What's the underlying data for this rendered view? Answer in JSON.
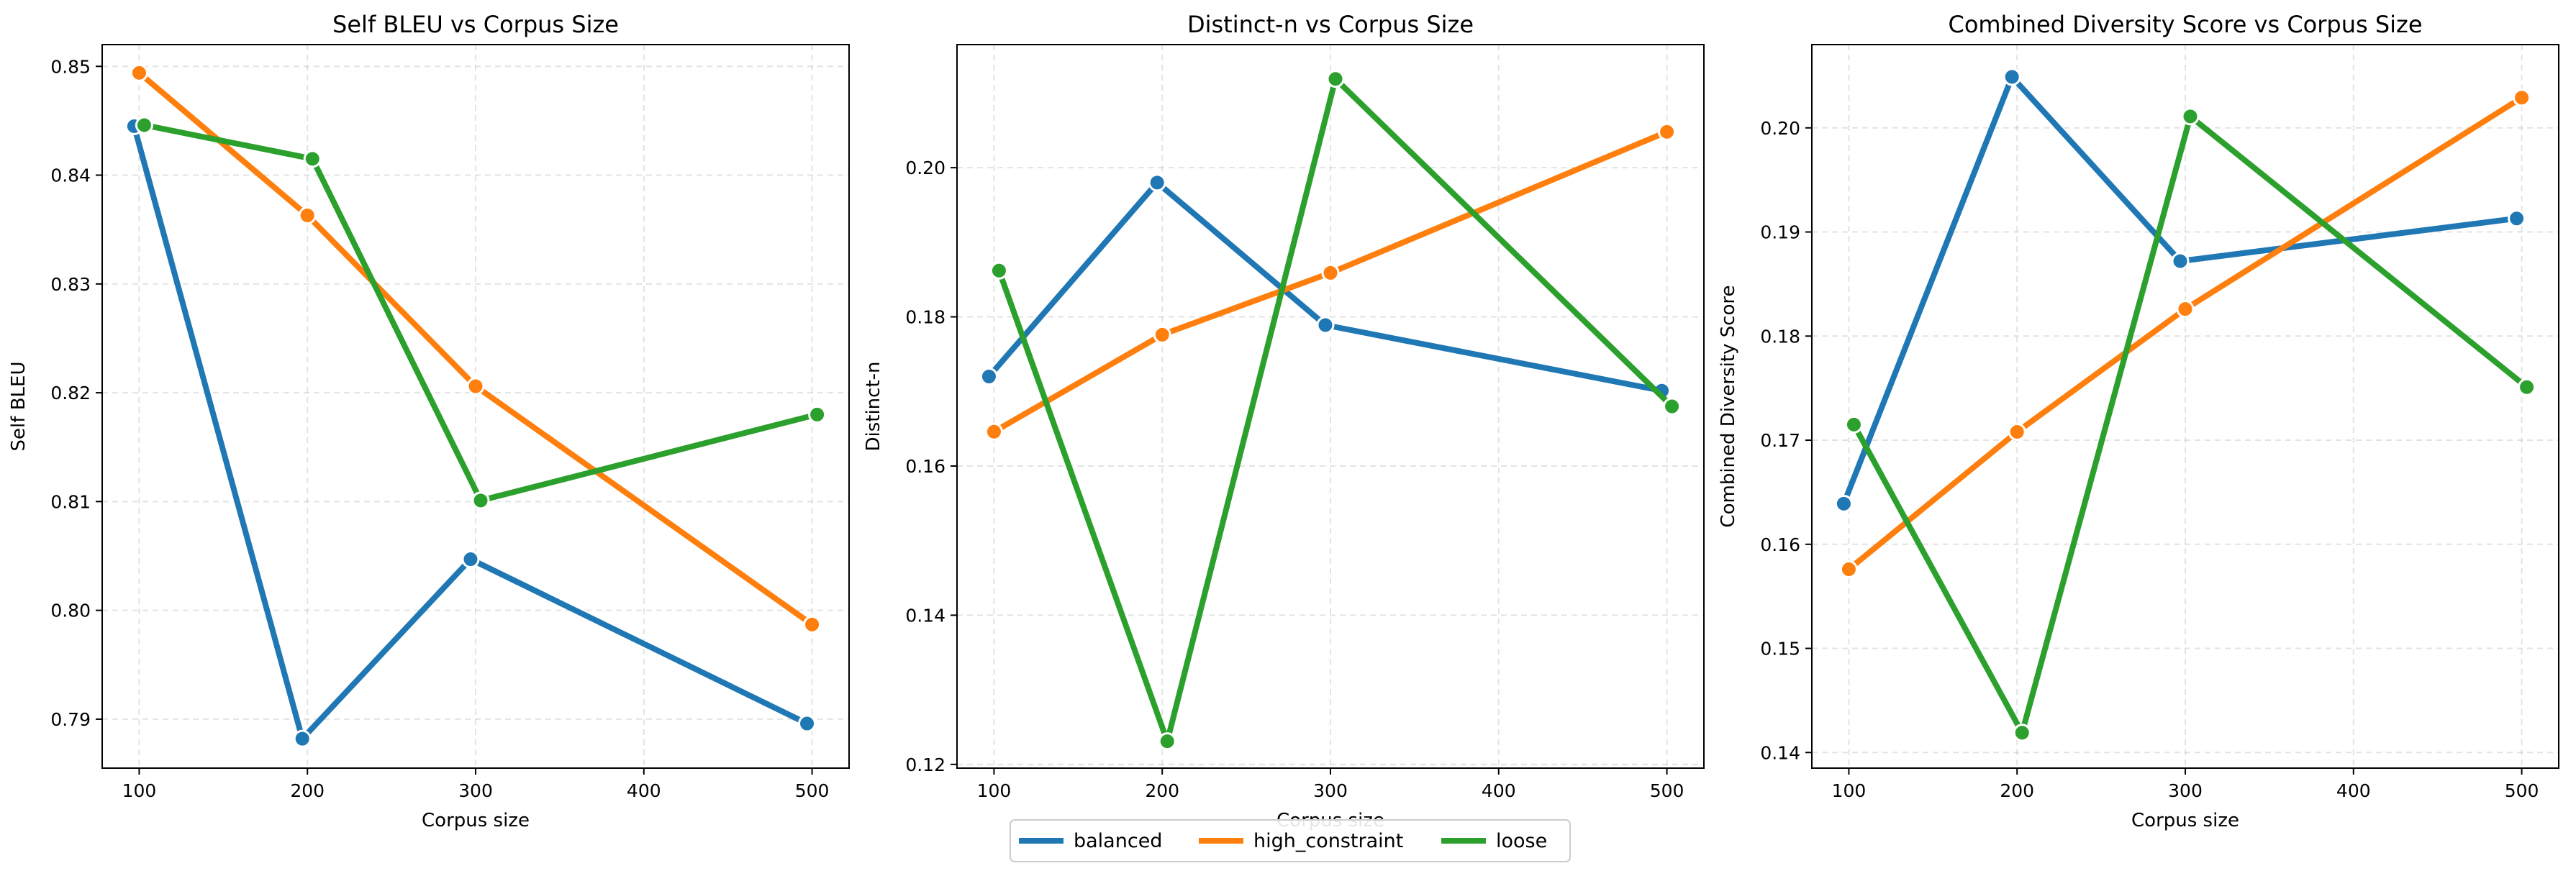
{
  "colors": {
    "balanced": "#1f77b4",
    "high_constraint": "#ff7f0e",
    "loose": "#2ca02c"
  },
  "legend": {
    "placement": "bottom-center",
    "entries": [
      "balanced",
      "high_constraint",
      "loose"
    ]
  },
  "chart_data": [
    {
      "type": "line",
      "title": "Self BLEU vs Corpus Size",
      "xlabel": "Corpus size",
      "ylabel": "Self BLEU",
      "xlim": [
        78,
        522
      ],
      "ylim": [
        0.7855,
        0.852
      ],
      "xticks": [
        100,
        200,
        300,
        400,
        500
      ],
      "xtick_labels": [
        "100",
        "200",
        "300",
        "400",
        "500"
      ],
      "yticks": [
        0.79,
        0.8,
        0.81,
        0.82,
        0.83,
        0.84,
        0.85
      ],
      "ytick_labels": [
        "0.79",
        "0.80",
        "0.81",
        "0.82",
        "0.83",
        "0.84",
        "0.85"
      ],
      "grid": true,
      "series": [
        {
          "name": "balanced",
          "x": [
            97,
            197,
            297,
            497
          ],
          "y": [
            0.8445,
            0.7882,
            0.8047,
            0.7896
          ]
        },
        {
          "name": "high_constraint",
          "x": [
            100,
            200,
            300,
            500
          ],
          "y": [
            0.8494,
            0.8363,
            0.8206,
            0.7987
          ]
        },
        {
          "name": "loose",
          "x": [
            103,
            203,
            303,
            503
          ],
          "y": [
            0.8446,
            0.8415,
            0.8101,
            0.818
          ]
        }
      ]
    },
    {
      "type": "line",
      "title": "Distinct-n vs Corpus Size",
      "xlabel": "Corpus size",
      "ylabel": "Distinct-n",
      "xlim": [
        78,
        522
      ],
      "ylim": [
        0.1195,
        0.2165
      ],
      "xticks": [
        100,
        200,
        300,
        400,
        500
      ],
      "xtick_labels": [
        "100",
        "200",
        "300",
        "400",
        "500"
      ],
      "yticks": [
        0.12,
        0.14,
        0.16,
        0.18,
        0.2
      ],
      "ytick_labels": [
        "0.12",
        "0.14",
        "0.16",
        "0.18",
        "0.20"
      ],
      "grid": true,
      "series": [
        {
          "name": "balanced",
          "x": [
            97,
            197,
            297,
            497
          ],
          "y": [
            0.172,
            0.198,
            0.1789,
            0.1701
          ]
        },
        {
          "name": "high_constraint",
          "x": [
            100,
            200,
            300,
            500
          ],
          "y": [
            0.1646,
            0.1776,
            0.1859,
            0.2048
          ]
        },
        {
          "name": "loose",
          "x": [
            103,
            203,
            303,
            503
          ],
          "y": [
            0.1862,
            0.1231,
            0.2119,
            0.168
          ]
        }
      ]
    },
    {
      "type": "line",
      "title": "Combined Diversity Score vs Corpus Size",
      "xlabel": "Corpus size",
      "ylabel": "Combined Diversity Score",
      "xlim": [
        78,
        522
      ],
      "ylim": [
        0.1385,
        0.208
      ],
      "xticks": [
        100,
        200,
        300,
        400,
        500
      ],
      "xtick_labels": [
        "100",
        "200",
        "300",
        "400",
        "500"
      ],
      "yticks": [
        0.14,
        0.15,
        0.16,
        0.17,
        0.18,
        0.19,
        0.2
      ],
      "ytick_labels": [
        "0.14",
        "0.15",
        "0.16",
        "0.17",
        "0.18",
        "0.19",
        "0.20"
      ],
      "grid": true,
      "series": [
        {
          "name": "balanced",
          "x": [
            97,
            197,
            297,
            497
          ],
          "y": [
            0.1639,
            0.2049,
            0.1872,
            0.1913
          ]
        },
        {
          "name": "high_constraint",
          "x": [
            100,
            200,
            300,
            500
          ],
          "y": [
            0.1576,
            0.1708,
            0.1826,
            0.2029
          ]
        },
        {
          "name": "loose",
          "x": [
            103,
            203,
            303,
            503
          ],
          "y": [
            0.1715,
            0.1419,
            0.2011,
            0.1751
          ]
        }
      ]
    }
  ]
}
